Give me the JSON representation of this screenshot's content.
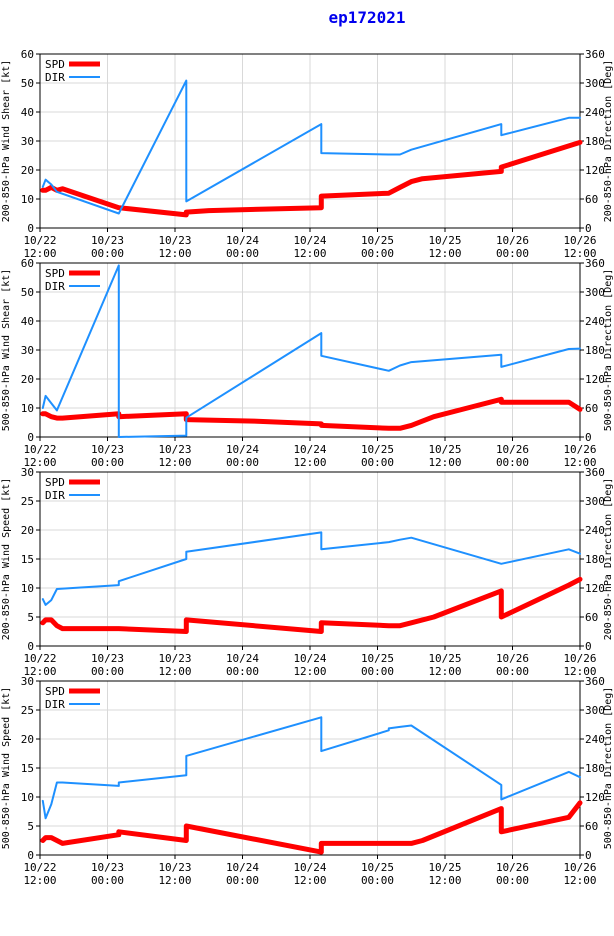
{
  "title": "ep172021",
  "colors": {
    "spd": "#ff0000",
    "dir": "#1e90ff",
    "axis": "#000000",
    "grid": "#d9d9d9"
  },
  "x_ticks": [
    "10/22\n12:00",
    "10/23\n00:00",
    "10/23\n12:00",
    "10/24\n00:00",
    "10/24\n12:00",
    "10/25\n00:00",
    "10/25\n12:00",
    "10/26\n00:00",
    "10/26\n12:00"
  ],
  "chart_data": [
    {
      "type": "line",
      "ylabel_left": "200-850-hPa Wind Shear [kt]",
      "ylabel_right": "200-850-hPa Direction [Deg]",
      "ylim_left": [
        0,
        60
      ],
      "yticks_left": [
        0,
        10,
        20,
        30,
        40,
        50,
        60
      ],
      "ylim_right": [
        0,
        360
      ],
      "yticks_right": [
        0,
        60,
        120,
        180,
        240,
        300,
        360
      ],
      "xlim": [
        0,
        96
      ],
      "legend": [
        "SPD",
        "DIR"
      ],
      "series": [
        {
          "name": "SPD",
          "x": [
            0.5,
            1,
            2,
            3,
            4,
            14,
            26,
            26,
            30,
            50,
            50,
            62,
            64,
            66,
            68,
            82,
            82,
            96
          ],
          "y": [
            13,
            13,
            14,
            13,
            13.5,
            7,
            4.5,
            5.5,
            6,
            7,
            11,
            12,
            14,
            16,
            17,
            19.5,
            21,
            29.5
          ]
        },
        {
          "name": "DIR",
          "x": [
            0.5,
            1,
            2,
            3,
            14,
            26,
            26,
            50,
            50,
            62,
            64,
            66,
            82,
            82,
            94,
            96
          ],
          "y": [
            85,
            100,
            90,
            75,
            30,
            305,
            55,
            215,
            155,
            152,
            152,
            162,
            215,
            192,
            228,
            228
          ]
        }
      ]
    },
    {
      "type": "line",
      "ylabel_left": "500-850-hPa Wind Shear [kt]",
      "ylabel_right": "500-850-hPa Direction [Deg]",
      "ylim_left": [
        0,
        60
      ],
      "yticks_left": [
        0,
        10,
        20,
        30,
        40,
        50,
        60
      ],
      "ylim_right": [
        0,
        360
      ],
      "yticks_right": [
        0,
        60,
        120,
        180,
        240,
        300,
        360
      ],
      "xlim": [
        0,
        96
      ],
      "legend": [
        "SPD",
        "DIR"
      ],
      "series": [
        {
          "name": "SPD",
          "x": [
            0.5,
            1,
            2,
            3,
            4,
            14,
            14,
            26,
            26,
            38,
            50,
            50,
            62,
            64,
            66,
            68,
            70,
            76,
            82,
            82,
            94,
            96
          ],
          "y": [
            8,
            8,
            7,
            6.5,
            6.5,
            8,
            7,
            8,
            6,
            5.5,
            4.5,
            4,
            3,
            3,
            4,
            5.5,
            7,
            10,
            13,
            12,
            12,
            9.5
          ]
        },
        {
          "name": "DIR",
          "x": [
            0.5,
            1,
            2,
            3,
            14,
            14,
            26,
            26,
            50,
            50,
            62,
            64,
            66,
            82,
            82,
            94,
            96
          ],
          "y": [
            60,
            85,
            70,
            55,
            355,
            0,
            3,
            40,
            215,
            168,
            137,
            148,
            155,
            170,
            145,
            182,
            183
          ]
        }
      ]
    },
    {
      "type": "line",
      "ylabel_left": "200-850-hPa Wind Speed [kt]",
      "ylabel_right": "200-850-hPa Direction [Deg]",
      "ylim_left": [
        0,
        30
      ],
      "yticks_left": [
        0,
        5,
        10,
        15,
        20,
        25,
        30
      ],
      "ylim_right": [
        0,
        360
      ],
      "yticks_right": [
        0,
        60,
        120,
        180,
        240,
        300,
        360
      ],
      "xlim": [
        0,
        96
      ],
      "legend": [
        "SPD",
        "DIR"
      ],
      "series": [
        {
          "name": "SPD",
          "x": [
            0.5,
            1,
            2,
            3,
            4,
            14,
            26,
            26,
            50,
            50,
            62,
            64,
            66,
            70,
            82,
            82,
            94,
            96
          ],
          "y": [
            4,
            4.5,
            4.5,
            3.5,
            3,
            3,
            2.5,
            4.5,
            2.5,
            4,
            3.5,
            3.5,
            4,
            5,
            9.5,
            5,
            10.5,
            11.5
          ]
        },
        {
          "name": "DIR",
          "x": [
            0.5,
            1,
            2,
            3,
            14,
            14,
            26,
            26,
            50,
            50,
            62,
            64,
            66,
            82,
            82,
            94,
            96
          ],
          "y": [
            97,
            85,
            95,
            118,
            126,
            134,
            180,
            195,
            235,
            200,
            215,
            220,
            224,
            170,
            170,
            200,
            191
          ]
        }
      ]
    },
    {
      "type": "line",
      "ylabel_left": "500-850-hPa Wind Speed [kt]",
      "ylabel_right": "500-850-hPa Direction [Deg]",
      "ylim_left": [
        0,
        30
      ],
      "yticks_left": [
        0,
        5,
        10,
        15,
        20,
        25,
        30
      ],
      "ylim_right": [
        0,
        360
      ],
      "yticks_right": [
        0,
        60,
        120,
        180,
        240,
        300,
        360
      ],
      "xlim": [
        0,
        96
      ],
      "legend": [
        "SPD",
        "DIR"
      ],
      "series": [
        {
          "name": "SPD",
          "x": [
            0.5,
            1,
            2,
            3,
            4,
            14,
            14,
            26,
            26,
            50,
            50,
            62,
            64,
            66,
            68,
            82,
            82,
            94,
            96
          ],
          "y": [
            2.5,
            3,
            3,
            2.5,
            2,
            3.5,
            4,
            2.5,
            5,
            0.5,
            2,
            2,
            2,
            2,
            2.5,
            8,
            4,
            6.5,
            9
          ]
        },
        {
          "name": "DIR",
          "x": [
            0.5,
            1,
            2,
            3,
            4,
            14,
            14,
            26,
            26,
            50,
            50,
            62,
            62,
            64,
            66,
            82,
            82,
            94,
            96
          ],
          "y": [
            112,
            76,
            105,
            150,
            150,
            143,
            150,
            165,
            205,
            285,
            215,
            258,
            262,
            265,
            268,
            145,
            115,
            172,
            161
          ]
        }
      ]
    }
  ]
}
